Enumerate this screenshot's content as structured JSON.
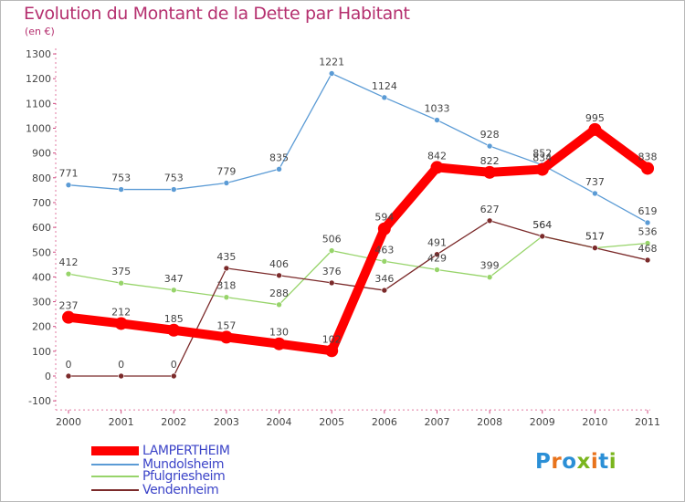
{
  "header": {
    "title": "Evolution du Montant de la Dette par Habitant",
    "subtitle": "(en €)"
  },
  "logo": {
    "text": "Proxiti",
    "letters": [
      "P",
      "r",
      "o",
      "x",
      "i",
      "t",
      "i"
    ],
    "colors": [
      "#2b8fd6",
      "#e8731c",
      "#2b8fd6",
      "#7ab51d",
      "#e8731c",
      "#2b8fd6",
      "#7ab51d"
    ]
  },
  "chart_data": {
    "type": "line",
    "title": "Evolution du Montant de la Dette par Habitant",
    "subtitle": "(en €)",
    "xlabel": "",
    "ylabel": "",
    "categories": [
      "2000",
      "2001",
      "2002",
      "2003",
      "2004",
      "2005",
      "2006",
      "2007",
      "2008",
      "2009",
      "2010",
      "2011"
    ],
    "ylim": [
      -100,
      1300
    ],
    "yticks": [
      -100,
      0,
      100,
      200,
      300,
      400,
      500,
      600,
      700,
      800,
      900,
      1000,
      1100,
      1200,
      1300
    ],
    "grid": false,
    "legend_position": "bottom-left",
    "series": [
      {
        "name": "LAMPERTHEIM",
        "color": "#ff0000",
        "values": [
          237,
          212,
          185,
          157,
          130,
          102,
          594,
          842,
          822,
          834,
          995,
          838
        ],
        "labels": [
          "237",
          "212",
          "185",
          "157",
          "130",
          "102",
          "594",
          "842",
          "822",
          "834",
          "995",
          "838"
        ]
      },
      {
        "name": "Mundolsheim",
        "color": "#5b9bd5",
        "values": [
          771,
          753,
          753,
          779,
          835,
          1221,
          1124,
          1033,
          928,
          852,
          737,
          619
        ],
        "labels": [
          "771",
          "753",
          "753",
          "779",
          "835",
          "1221",
          "1124",
          "1033",
          "928",
          "852",
          "737",
          "619"
        ]
      },
      {
        "name": "Pfulgriesheim",
        "color": "#97d46a",
        "values": [
          412,
          375,
          347,
          318,
          288,
          506,
          463,
          429,
          399,
          564,
          517,
          536
        ],
        "labels": [
          "412",
          "375",
          "347",
          "318",
          "288",
          "506",
          "463",
          "429",
          "399",
          "564",
          "517",
          "536"
        ]
      },
      {
        "name": "Vendenheim",
        "color": "#7b2a2a",
        "values": [
          0,
          0,
          0,
          435,
          406,
          376,
          346,
          491,
          627,
          564,
          517,
          468
        ],
        "labels": [
          "0",
          "0",
          "0",
          "435",
          "406",
          "376",
          "346",
          "491",
          "627",
          "564",
          "517",
          "468"
        ]
      }
    ]
  }
}
